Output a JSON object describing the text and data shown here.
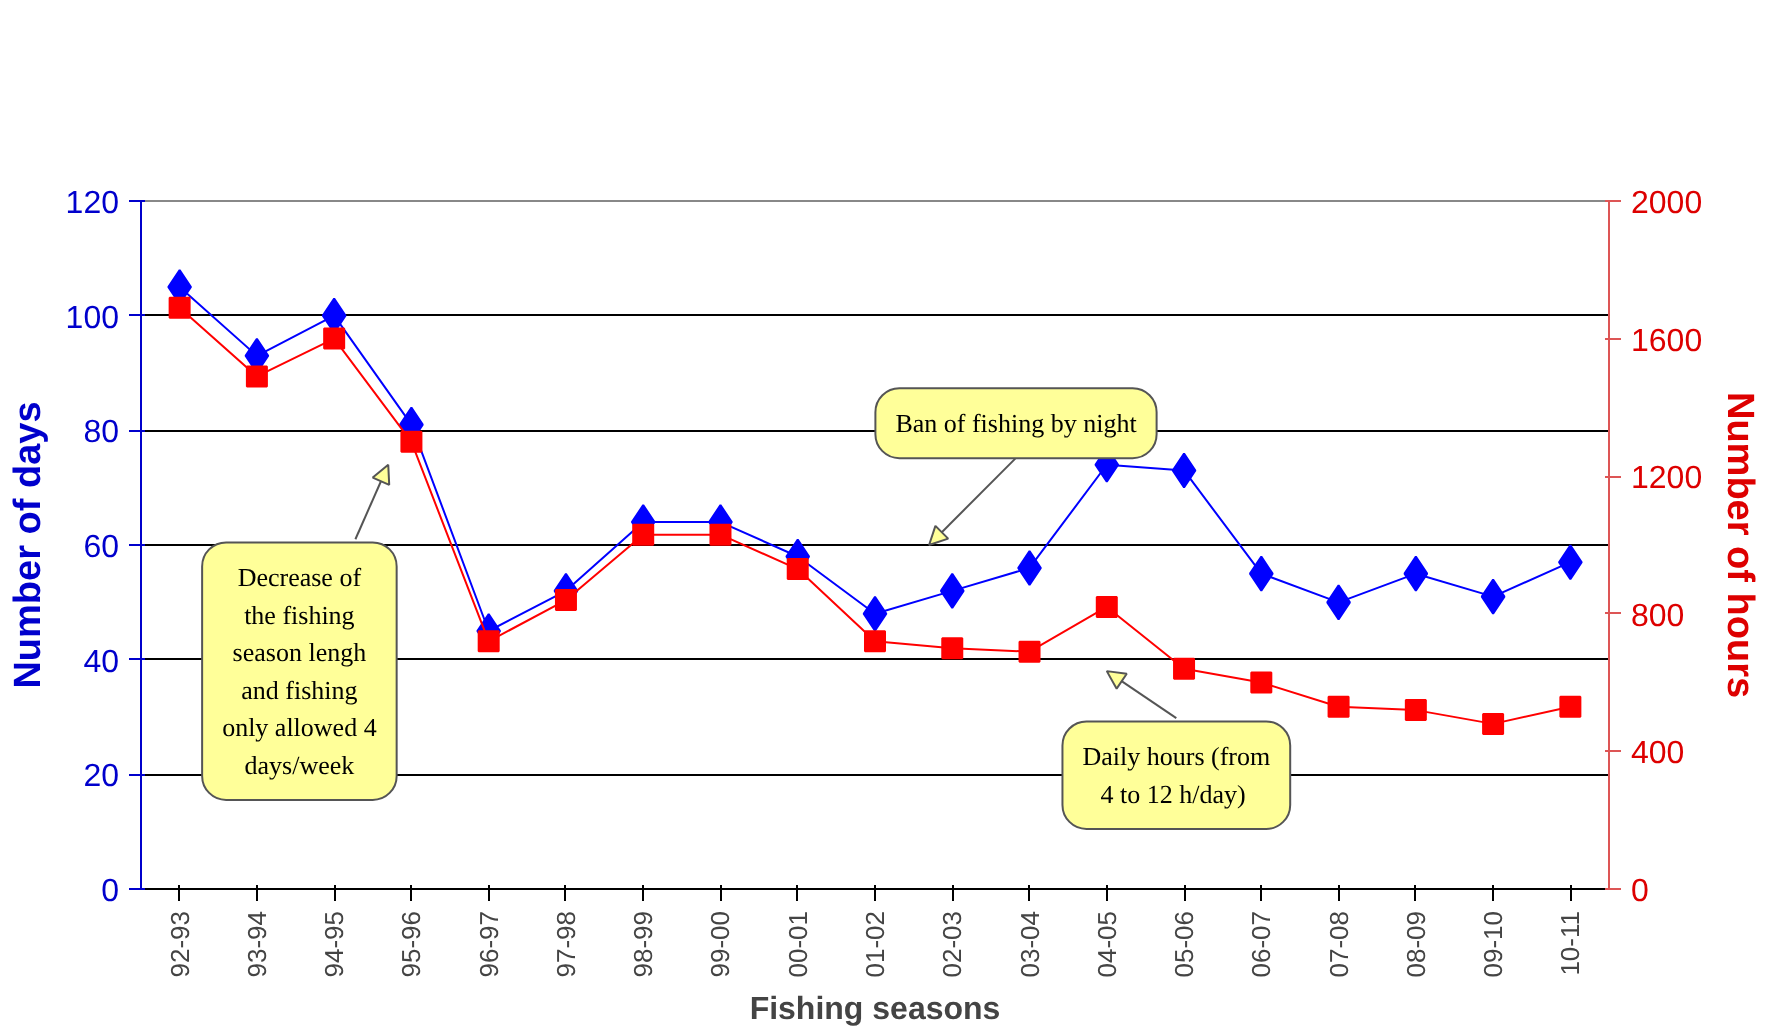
{
  "chart_data": {
    "type": "line",
    "xlabel": "Fishing seasons",
    "ylabel": "Number of days",
    "y2label": "Number of hours",
    "categories": [
      "92-93",
      "93-94",
      "94-95",
      "95-96",
      "96-97",
      "97-98",
      "98-99",
      "99-00",
      "00-01",
      "01-02",
      "02-03",
      "03-04",
      "04-05",
      "05-06",
      "06-07",
      "07-08",
      "08-09",
      "09-10",
      "10-11"
    ],
    "series": [
      {
        "color": "#0000ff",
        "marker": "diamond",
        "values": [
          105,
          93,
          100,
          81,
          45,
          52,
          64,
          64,
          58,
          48,
          52,
          56,
          74,
          73,
          55,
          50,
          55,
          51,
          57
        ]
      },
      {
        "color": "#ff0000",
        "marker": "square",
        "axis": "y2",
        "values": [
          1690,
          1490,
          1600,
          1300,
          720,
          840,
          1030,
          1030,
          930,
          720,
          700,
          690,
          820,
          640,
          600,
          530,
          520,
          480,
          530
        ]
      }
    ],
    "ylim": [
      0,
      120
    ],
    "yticks": [
      0,
      20,
      40,
      60,
      80,
      100,
      120
    ],
    "y2lim": [
      0,
      2000
    ],
    "y2ticks": [
      0,
      400,
      800,
      1200,
      1600,
      2000
    ],
    "grid": "y",
    "annotations": [
      "Decrease of the fishing season lengh and fishing only allowed 4 days/week",
      "Ban of fishing by night",
      "Daily hours (from 4  to 12 h/day)"
    ]
  }
}
